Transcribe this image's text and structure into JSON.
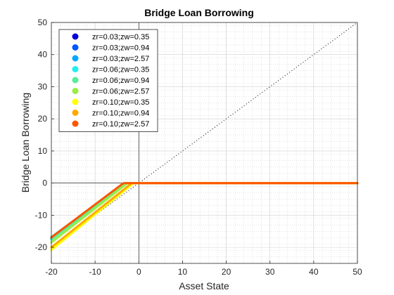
{
  "chart_data": {
    "type": "line",
    "title": "Bridge Loan Borrowing",
    "xlabel": "Asset State",
    "ylabel": "Bridge Loan Borrowing",
    "xlim": [
      -20,
      50
    ],
    "ylim": [
      -25,
      50
    ],
    "xticks": [
      -20,
      -10,
      0,
      10,
      20,
      30,
      40,
      50
    ],
    "yticks": [
      -20,
      -10,
      0,
      10,
      20,
      30,
      40,
      50
    ],
    "grid": true,
    "minor_grid": true,
    "legend_placement": "top-left",
    "reference_lines": [
      {
        "style": "dotted",
        "color": "#000000",
        "x": [
          -20,
          50
        ],
        "y": [
          -20,
          50
        ]
      },
      {
        "style": "solid-thin",
        "color": "#000000",
        "orientation": "vertical",
        "value": 0
      },
      {
        "style": "solid-thin",
        "color": "#000000",
        "orientation": "horizontal",
        "value": 0
      }
    ],
    "series": [
      {
        "name": "zr=0.03;zw=0.35",
        "color": "#0000d8",
        "x": [
          -20,
          -3,
          50
        ],
        "y": [
          -17.0,
          0,
          0
        ]
      },
      {
        "name": "zr=0.03;zw=0.94",
        "color": "#0055ff",
        "x": [
          -20,
          -3,
          50
        ],
        "y": [
          -17.2,
          0,
          0
        ]
      },
      {
        "name": "zr=0.03;zw=2.57",
        "color": "#00aaff",
        "x": [
          -20,
          -3,
          50
        ],
        "y": [
          -17.4,
          0,
          0
        ]
      },
      {
        "name": "zr=0.06;zw=0.35",
        "color": "#22eeee",
        "x": [
          -20,
          -3.2,
          50
        ],
        "y": [
          -16.8,
          0,
          0
        ]
      },
      {
        "name": "zr=0.06;zw=0.94",
        "color": "#55ee99",
        "x": [
          -20,
          -3,
          50
        ],
        "y": [
          -17.6,
          0,
          0
        ]
      },
      {
        "name": "zr=0.06;zw=2.57",
        "color": "#99ee44",
        "x": [
          -20,
          -2.6,
          50
        ],
        "y": [
          -18.5,
          0,
          0
        ]
      },
      {
        "name": "zr=0.10;zw=0.35",
        "color": "#ffff00",
        "x": [
          -20,
          -1.2,
          50
        ],
        "y": [
          -20.8,
          0,
          0
        ]
      },
      {
        "name": "zr=0.10;zw=0.94",
        "color": "#ffaa00",
        "x": [
          -20,
          -1.6,
          50
        ],
        "y": [
          -20.0,
          0,
          0
        ]
      },
      {
        "name": "zr=0.10;zw=2.57",
        "color": "#ff5500",
        "x": [
          -20,
          -3.5,
          50
        ],
        "y": [
          -16.9,
          0,
          0
        ]
      }
    ]
  }
}
